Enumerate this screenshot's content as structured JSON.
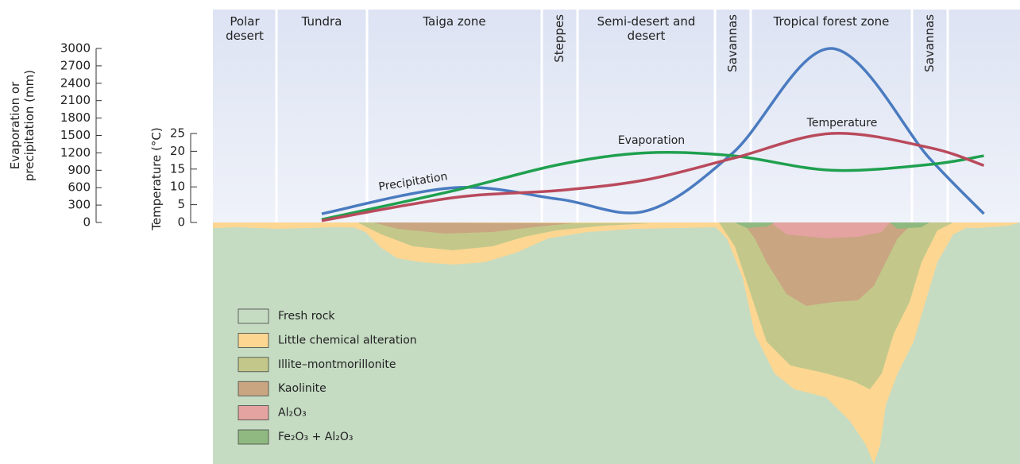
{
  "chart_data": {
    "type": "line",
    "categories": [
      "Polar desert",
      "Tundra",
      "Taiga zone",
      "Steppes",
      "Semi-desert and desert",
      "Savannas",
      "Tropical forest zone",
      "Savannas",
      null
    ],
    "series": [
      {
        "name": "Precipitation",
        "color": "#4a7bc0",
        "values": [
          null,
          150,
          600,
          400,
          200,
          1200,
          3000,
          1100,
          150
        ]
      },
      {
        "name": "Evaporation",
        "color": "#1fa04f",
        "values": [
          null,
          50,
          550,
          1000,
          1200,
          1150,
          900,
          1000,
          1150
        ]
      },
      {
        "name": "Temperature",
        "color": "#b94a5c",
        "axis": "y2",
        "values": [
          null,
          0.5,
          7,
          9,
          12,
          18,
          25,
          21,
          16
        ]
      }
    ],
    "ylabel": "Evaporation or precipitation (mm)",
    "ylim": [
      0,
      3000
    ],
    "yticks": [
      0,
      300,
      600,
      900,
      1200,
      1500,
      1800,
      2100,
      2400,
      2700,
      3000
    ],
    "y2label": "Temperature (°C)",
    "y2lim": [
      0,
      25
    ],
    "y2ticks": [
      0,
      5,
      10,
      15,
      20,
      25
    ],
    "legend": [
      {
        "name": "Fresh rock",
        "color": "#c5dcc3"
      },
      {
        "name": "Little chemical alteration",
        "color": "#fdd692"
      },
      {
        "name": "Illite–montmorillonite",
        "color": "#c3c88a"
      },
      {
        "name": "Kaolinite",
        "color": "#c9a582"
      },
      {
        "name": "Al₂O₃",
        "color": "#e4a3a0"
      },
      {
        "name": "Fe₂O₃ + Al₂O₃",
        "color": "#8fb980"
      }
    ]
  }
}
